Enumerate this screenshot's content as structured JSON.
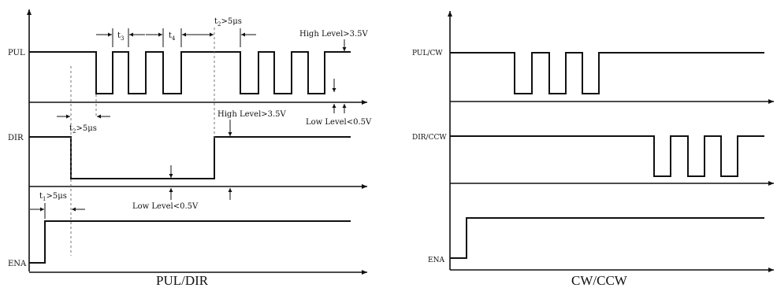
{
  "left_diagram": {
    "signals": [
      "PUL",
      "DIR",
      "ENA"
    ],
    "caption": "PUL/DIR",
    "annotations": {
      "high_level_top": "High Level>3.5V",
      "low_level_right": "Low Level<0.5V",
      "high_level_mid": "High Level>3.5V",
      "low_level_bottom": "Low Level<0.5V",
      "t3": "t3",
      "t4": "t4",
      "t2_top": "t2>5μs",
      "t2_mid": "t2>5μs",
      "t1": "t1>5μs"
    }
  },
  "right_diagram": {
    "signals": [
      "PUL/CW",
      "DIR/CCW",
      "ENA"
    ],
    "caption": "CW/CCW"
  }
}
